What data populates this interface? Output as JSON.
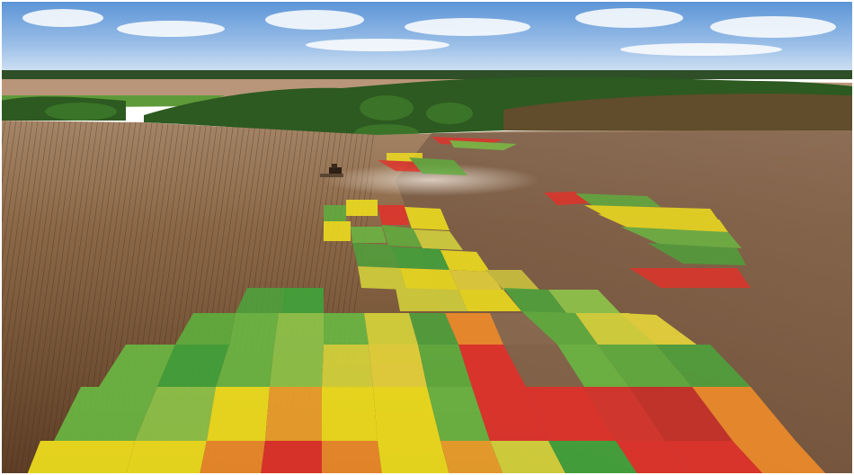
{
  "scene": {
    "type": "photo",
    "subject": "aerial-farmland-with-field-zone-overlay",
    "colors": {
      "sky_top": "#5f95d6",
      "sky_bottom": "#cfe0f3",
      "soil_near": "#6d4a2d",
      "soil_far": "#9a7656",
      "treeline": "#2f5a22",
      "zone_green_dark": "#3fa43a",
      "zone_green_light": "#8fc64a",
      "zone_yellow": "#f2e21d",
      "zone_orange": "#f0a22b",
      "zone_red": "#e3312a"
    },
    "palette_legend_order": [
      "green-dark",
      "green-light",
      "yellow",
      "orange",
      "red"
    ],
    "icons": [
      "tractor-icon"
    ]
  }
}
